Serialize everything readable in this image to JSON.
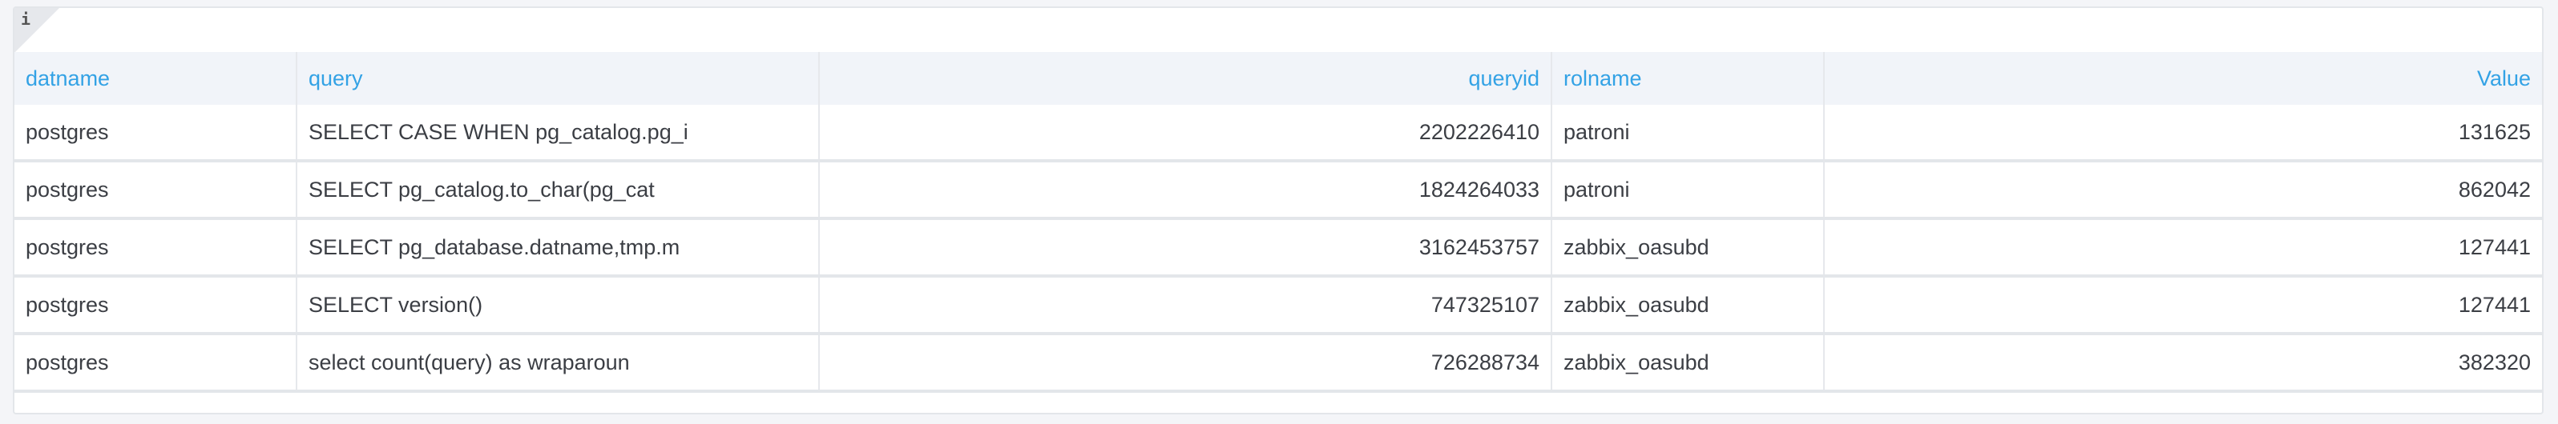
{
  "panel": {
    "info_icon": "i"
  },
  "table": {
    "columns": [
      "datname",
      "query",
      "queryid",
      "rolname",
      "Value"
    ],
    "rows": [
      [
        "postgres",
        "SELECT CASE WHEN pg_catalog.pg_i",
        "2202226410",
        "patroni",
        "131625"
      ],
      [
        "postgres",
        "SELECT pg_catalog.to_char(pg_cat",
        "1824264033",
        "patroni",
        "862042"
      ],
      [
        "postgres",
        "SELECT pg_database.datname,tmp.m",
        "3162453757",
        "zabbix_oasubd",
        "127441"
      ],
      [
        "postgres",
        "SELECT version()",
        "747325107",
        "zabbix_oasubd",
        "127441"
      ],
      [
        "postgres",
        "select count(query) as wraparoun",
        "726288734",
        "zabbix_oasubd",
        "382320"
      ]
    ]
  },
  "colors": {
    "header_text": "#33a2e5",
    "header_bg": "#f1f4f9",
    "cell_text": "#3b3e44"
  }
}
